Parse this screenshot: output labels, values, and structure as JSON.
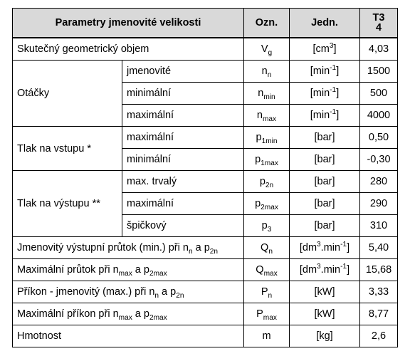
{
  "header": {
    "param": "Parametry jmenovité velikosti",
    "ozn": "Ozn.",
    "jedn": "Jedn.",
    "model_line1": "T3",
    "model_line2": "4"
  },
  "rows": {
    "objem": {
      "label": "Skutečný geometrický objem",
      "sym": "V",
      "sym_sub": "g",
      "unit": "[cm",
      "unit_sup": "3",
      "unit_end": "]",
      "value": "4,03"
    },
    "otacky": {
      "label": "Otáčky",
      "items": [
        {
          "sub_label": "jmenovité",
          "sym": "n",
          "sym_sub": "n",
          "unit": "[min",
          "unit_sup": "-1",
          "unit_end": "]",
          "value": "1500"
        },
        {
          "sub_label": "minimální",
          "sym": "n",
          "sym_sub": "min",
          "unit": "[min",
          "unit_sup": "-1",
          "unit_end": "]",
          "value": "500"
        },
        {
          "sub_label": "maximální",
          "sym": "n",
          "sym_sub": "max",
          "unit": "[min",
          "unit_sup": "-1",
          "unit_end": "]",
          "value": "4000"
        }
      ]
    },
    "tlak_vstup": {
      "label": "Tlak na vstupu *",
      "items": [
        {
          "sub_label": "maximální",
          "sym": "p",
          "sym_sub": "1min",
          "unit": "[bar]",
          "value": "0,50"
        },
        {
          "sub_label": "minimální",
          "sym": "p",
          "sym_sub": "1max",
          "unit": "[bar]",
          "value": "-0,30"
        }
      ]
    },
    "tlak_vystup": {
      "label": "Tlak na výstupu **",
      "items": [
        {
          "sub_label": "max. trvalý",
          "sym": "p",
          "sym_sub": "2n",
          "unit": "[bar]",
          "value": "280"
        },
        {
          "sub_label": "maximální",
          "sym": "p",
          "sym_sub": "2max",
          "unit": "[bar]",
          "value": "290"
        },
        {
          "sub_label": "špičkový",
          "sym": "p",
          "sym_sub": "3",
          "unit": "[bar]",
          "value": "310"
        }
      ]
    },
    "prutok_jm": {
      "label_a": "Jmenovitý výstupní průtok (min.) při n",
      "label_a_sub": "n",
      "label_b": " a p",
      "label_b_sub": "2n",
      "sym": "Q",
      "sym_sub": "n",
      "unit": "[dm",
      "unit_sup": "3",
      "unit_mid": ".min",
      "unit_sup2": "-1",
      "unit_end": "]",
      "value": "5,40"
    },
    "prutok_max": {
      "label_a": "Maximální průtok při n",
      "label_a_sub": "max",
      "label_b": " a p",
      "label_b_sub": "2max",
      "sym": "Q",
      "sym_sub": "max",
      "unit": "[dm",
      "unit_sup": "3",
      "unit_mid": ".min",
      "unit_sup2": "-1",
      "unit_end": "]",
      "value": "15,68"
    },
    "prikon_jm": {
      "label_a": "Příkon - jmenovitý (max.) při n",
      "label_a_sub": "n",
      "label_b": " a p",
      "label_b_sub": "2n",
      "sym": "P",
      "sym_sub": "n",
      "unit": "[kW]",
      "value": "3,33"
    },
    "prikon_max": {
      "label_a": "Maximální příkon při n",
      "label_a_sub": "max",
      "label_b": " a p",
      "label_b_sub": "2max",
      "sym": "P",
      "sym_sub": "max",
      "unit": "[kW]",
      "value": "8,77"
    },
    "hmotnost": {
      "label": "Hmotnost",
      "sym": "m",
      "unit": "[kg]",
      "value": "2,6"
    }
  }
}
